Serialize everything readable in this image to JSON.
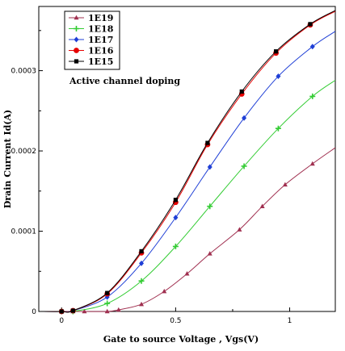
{
  "chart_data": {
    "type": "line",
    "xlabel": "Gate to source Voltage , Vgs(V)",
    "ylabel": "Drain Current Id(A)",
    "xlim": [
      -0.1,
      1.2
    ],
    "ylim": [
      0,
      0.00038
    ],
    "x_ticks": [
      "0",
      "0.5",
      "1"
    ],
    "x_tick_values": [
      0,
      0.5,
      1
    ],
    "y_ticks": [
      "0",
      "0.0001",
      "0.0002",
      "0.0003"
    ],
    "y_tick_values": [
      0,
      0.0001,
      0.0002,
      0.0003
    ],
    "annotation": "Active channel doping",
    "legend_position": "top-left",
    "grid": false,
    "series": [
      {
        "name": "1E19",
        "color": "#a03050",
        "marker": "triangle",
        "x": [
          -0.1,
          0,
          0.05,
          0.1,
          0.2,
          0.25,
          0.35,
          0.45,
          0.55,
          0.65,
          0.78,
          0.88,
          0.98,
          1.1,
          1.2
        ],
        "y": [
          0,
          0,
          0,
          0,
          0,
          2e-06,
          9e-06,
          2.5e-05,
          4.7e-05,
          7.2e-05,
          0.000102,
          0.000131,
          0.000158,
          0.000184,
          0.000204
        ]
      },
      {
        "name": "1E18",
        "color": "#33cc33",
        "marker": "plus",
        "x": [
          -0.1,
          0,
          0.05,
          0.2,
          0.35,
          0.5,
          0.65,
          0.8,
          0.95,
          1.1,
          1.2
        ],
        "y": [
          0,
          0,
          0,
          1e-05,
          3.8e-05,
          8.1e-05,
          0.000131,
          0.000181,
          0.000228,
          0.000268,
          0.000288
        ]
      },
      {
        "name": "1E17",
        "color": "#1f3fd6",
        "marker": "diamond",
        "x": [
          -0.1,
          0,
          0.05,
          0.2,
          0.35,
          0.5,
          0.65,
          0.8,
          0.95,
          1.1,
          1.2
        ],
        "y": [
          0,
          0,
          1e-06,
          1.8e-05,
          6e-05,
          0.000117,
          0.00018,
          0.000241,
          0.000293,
          0.00033,
          0.000349
        ]
      },
      {
        "name": "1E16",
        "color": "#e60000",
        "marker": "circle",
        "x": [
          -0.1,
          0,
          0.05,
          0.2,
          0.35,
          0.5,
          0.64,
          0.79,
          0.94,
          1.09,
          1.2
        ],
        "y": [
          0,
          0,
          1e-06,
          2.2e-05,
          7.3e-05,
          0.000136,
          0.000208,
          0.000271,
          0.000322,
          0.000357,
          0.000374
        ]
      },
      {
        "name": "1E15",
        "color": "#000000",
        "marker": "square",
        "x": [
          -0.1,
          0,
          0.05,
          0.2,
          0.35,
          0.5,
          0.64,
          0.79,
          0.94,
          1.09,
          1.2
        ],
        "y": [
          0,
          0,
          1e-06,
          2.3e-05,
          7.5e-05,
          0.000139,
          0.00021,
          0.000274,
          0.000324,
          0.000358,
          0.000375
        ]
      }
    ]
  }
}
